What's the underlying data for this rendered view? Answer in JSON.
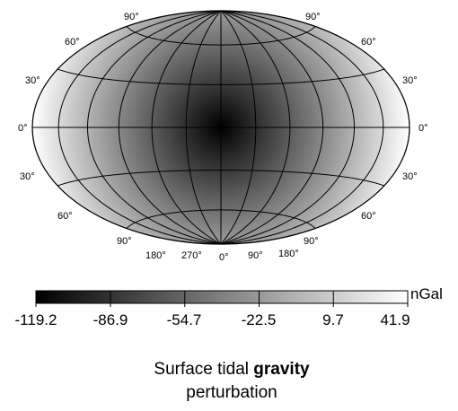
{
  "map": {
    "projection": "Hammer-Aitoff",
    "field_colors": {
      "low": "#000000",
      "high": "#ffffff"
    },
    "graticule_color": "#000000",
    "latitude_labels": {
      "north_90": "90°",
      "north_60": "60°",
      "north_30": "30°",
      "equator": "0°",
      "south_30": "30°",
      "south_60": "60°",
      "south_90": "90°"
    },
    "longitude_labels": {
      "lon_180_left": "180°",
      "lon_270": "270°",
      "lon_0": "0°",
      "lon_90": "90°",
      "lon_180_right": "180°"
    }
  },
  "colorbar": {
    "unit": "nGal",
    "ticks": [
      "-119.2",
      "-86.9",
      "-54.7",
      "-22.5",
      "9.7",
      "41.9"
    ],
    "tick_values": [
      -119.2,
      -86.9,
      -54.7,
      -22.5,
      9.7,
      41.9
    ],
    "color_low": "#000000",
    "color_high": "#ffffff"
  },
  "caption": {
    "line1_pre": "Surface tidal ",
    "line1_bold": "gravity",
    "line2": "perturbation"
  }
}
